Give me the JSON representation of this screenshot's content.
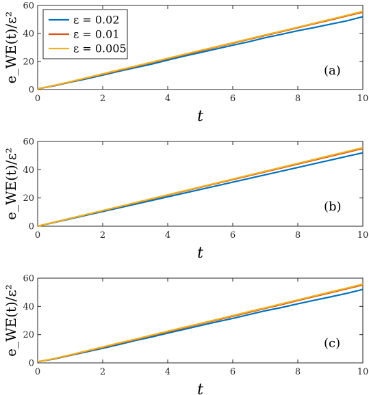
{
  "chart_data": [
    {
      "type": "line",
      "panel_label": "(a)",
      "xlabel": "t",
      "ylabel": "e_WE(t)/ε²",
      "xlim": [
        0,
        10
      ],
      "ylim": [
        0,
        60
      ],
      "xticks": [
        "0",
        "2",
        "4",
        "6",
        "8",
        "10"
      ],
      "yticks": [
        "0",
        "20",
        "40",
        "60"
      ],
      "legend": "top-left",
      "series": [
        {
          "name": "ε = 0.02",
          "color": "#0072BD",
          "x": [
            0,
            0.5,
            1,
            1.5,
            2,
            2.5,
            3,
            3.5,
            4,
            4.5,
            5,
            5.5,
            6,
            6.5,
            7,
            7.5,
            8,
            8.5,
            9,
            9.5,
            10
          ],
          "values": [
            0.5,
            2.6,
            5.2,
            7.6,
            10.3,
            13.0,
            15.6,
            18.1,
            21.0,
            23.8,
            26.4,
            29.0,
            31.6,
            34.1,
            37.0,
            39.4,
            42.0,
            44.2,
            46.6,
            49.0,
            52.0
          ]
        },
        {
          "name": "ε = 0.01",
          "color": "#D95319",
          "x": [
            0,
            0.5,
            1,
            1.5,
            2,
            2.5,
            3,
            3.5,
            4,
            4.5,
            5,
            5.5,
            6,
            6.5,
            7,
            7.5,
            8,
            8.5,
            9,
            9.5,
            10
          ],
          "values": [
            0.5,
            2.8,
            5.4,
            8.2,
            10.9,
            13.7,
            16.4,
            19.2,
            22.0,
            24.8,
            27.5,
            30.3,
            33.0,
            35.8,
            38.6,
            41.3,
            44.1,
            46.9,
            49.6,
            52.5,
            55.2
          ]
        },
        {
          "name": "ε = 0.005",
          "color": "#EDB120",
          "x": [
            0,
            0.5,
            1,
            1.5,
            2,
            2.5,
            3,
            3.5,
            4,
            4.5,
            5,
            5.5,
            6,
            6.5,
            7,
            7.5,
            8,
            8.5,
            9,
            9.5,
            10
          ],
          "values": [
            0.5,
            2.9,
            5.6,
            8.4,
            11.2,
            14.0,
            16.7,
            19.5,
            22.3,
            25.1,
            27.9,
            30.6,
            33.4,
            36.2,
            39.0,
            41.7,
            44.5,
            47.3,
            50.1,
            52.9,
            55.8
          ]
        }
      ]
    },
    {
      "type": "line",
      "panel_label": "(b)",
      "xlabel": "t",
      "ylabel": "e_WE(t)/ε²",
      "xlim": [
        0,
        10
      ],
      "ylim": [
        0,
        60
      ],
      "xticks": [
        "0",
        "2",
        "4",
        "6",
        "8",
        "10"
      ],
      "yticks": [
        "0",
        "20",
        "40",
        "60"
      ],
      "series": [
        {
          "name": "ε = 0.02",
          "color": "#0072BD",
          "x": [
            0,
            1,
            2,
            3,
            4,
            5,
            6,
            7,
            8,
            9,
            10
          ],
          "values": [
            0,
            5.2,
            10.4,
            15.6,
            20.8,
            26.0,
            31.2,
            36.4,
            41.6,
            46.8,
            52.0
          ]
        },
        {
          "name": "ε = 0.01",
          "color": "#D95319",
          "x": [
            0,
            1,
            2,
            3,
            4,
            5,
            6,
            7,
            8,
            9,
            10
          ],
          "values": [
            0,
            5.5,
            11.0,
            16.5,
            22.0,
            27.5,
            33.0,
            38.5,
            44.0,
            49.5,
            55.0
          ]
        },
        {
          "name": "ε = 0.005",
          "color": "#EDB120",
          "x": [
            0,
            1,
            2,
            3,
            4,
            5,
            6,
            7,
            8,
            9,
            10
          ],
          "values": [
            0,
            5.56,
            11.12,
            16.68,
            22.24,
            27.8,
            33.36,
            38.92,
            44.48,
            50.04,
            55.6
          ]
        }
      ]
    },
    {
      "type": "line",
      "panel_label": "(c)",
      "xlabel": "t",
      "ylabel": "e_WE(t)/ε²",
      "xlim": [
        0,
        10
      ],
      "ylim": [
        0,
        60
      ],
      "xticks": [
        "0",
        "2",
        "4",
        "6",
        "8",
        "10"
      ],
      "yticks": [
        "0",
        "20",
        "40",
        "60"
      ],
      "series": [
        {
          "name": "ε = 0.02",
          "color": "#0072BD",
          "x": [
            0,
            0.5,
            1,
            1.5,
            2,
            2.5,
            3,
            3.5,
            4,
            4.5,
            5,
            5.5,
            6,
            6.5,
            7,
            7.5,
            8,
            8.5,
            9,
            9.5,
            10
          ],
          "values": [
            0.8,
            2.7,
            5.3,
            7.8,
            10.3,
            13.0,
            15.8,
            18.3,
            21.1,
            23.7,
            26.4,
            29.0,
            31.5,
            34.2,
            36.9,
            39.2,
            41.8,
            44.3,
            46.7,
            49.2,
            52.0
          ]
        },
        {
          "name": "ε = 0.01",
          "color": "#D95319",
          "x": [
            0,
            0.5,
            1,
            1.5,
            2,
            2.5,
            3,
            3.5,
            4,
            4.5,
            5,
            5.5,
            6,
            6.5,
            7,
            7.5,
            8,
            8.5,
            9,
            9.5,
            10
          ],
          "values": [
            0.8,
            2.9,
            5.5,
            8.3,
            11.0,
            13.8,
            16.5,
            19.3,
            22.0,
            24.8,
            27.6,
            30.3,
            33.0,
            35.8,
            38.6,
            41.3,
            44.1,
            46.9,
            49.6,
            52.4,
            55.2
          ]
        },
        {
          "name": "ε = 0.005",
          "color": "#EDB120",
          "x": [
            0,
            0.5,
            1,
            1.5,
            2,
            2.5,
            3,
            3.5,
            4,
            4.5,
            5,
            5.5,
            6,
            6.5,
            7,
            7.5,
            8,
            8.5,
            9,
            9.5,
            10
          ],
          "values": [
            0.8,
            3.0,
            5.7,
            8.5,
            11.3,
            14.1,
            16.8,
            19.6,
            22.4,
            25.2,
            27.9,
            30.7,
            33.5,
            36.3,
            39.0,
            41.8,
            44.6,
            47.4,
            50.2,
            52.9,
            55.8
          ]
        }
      ]
    }
  ]
}
